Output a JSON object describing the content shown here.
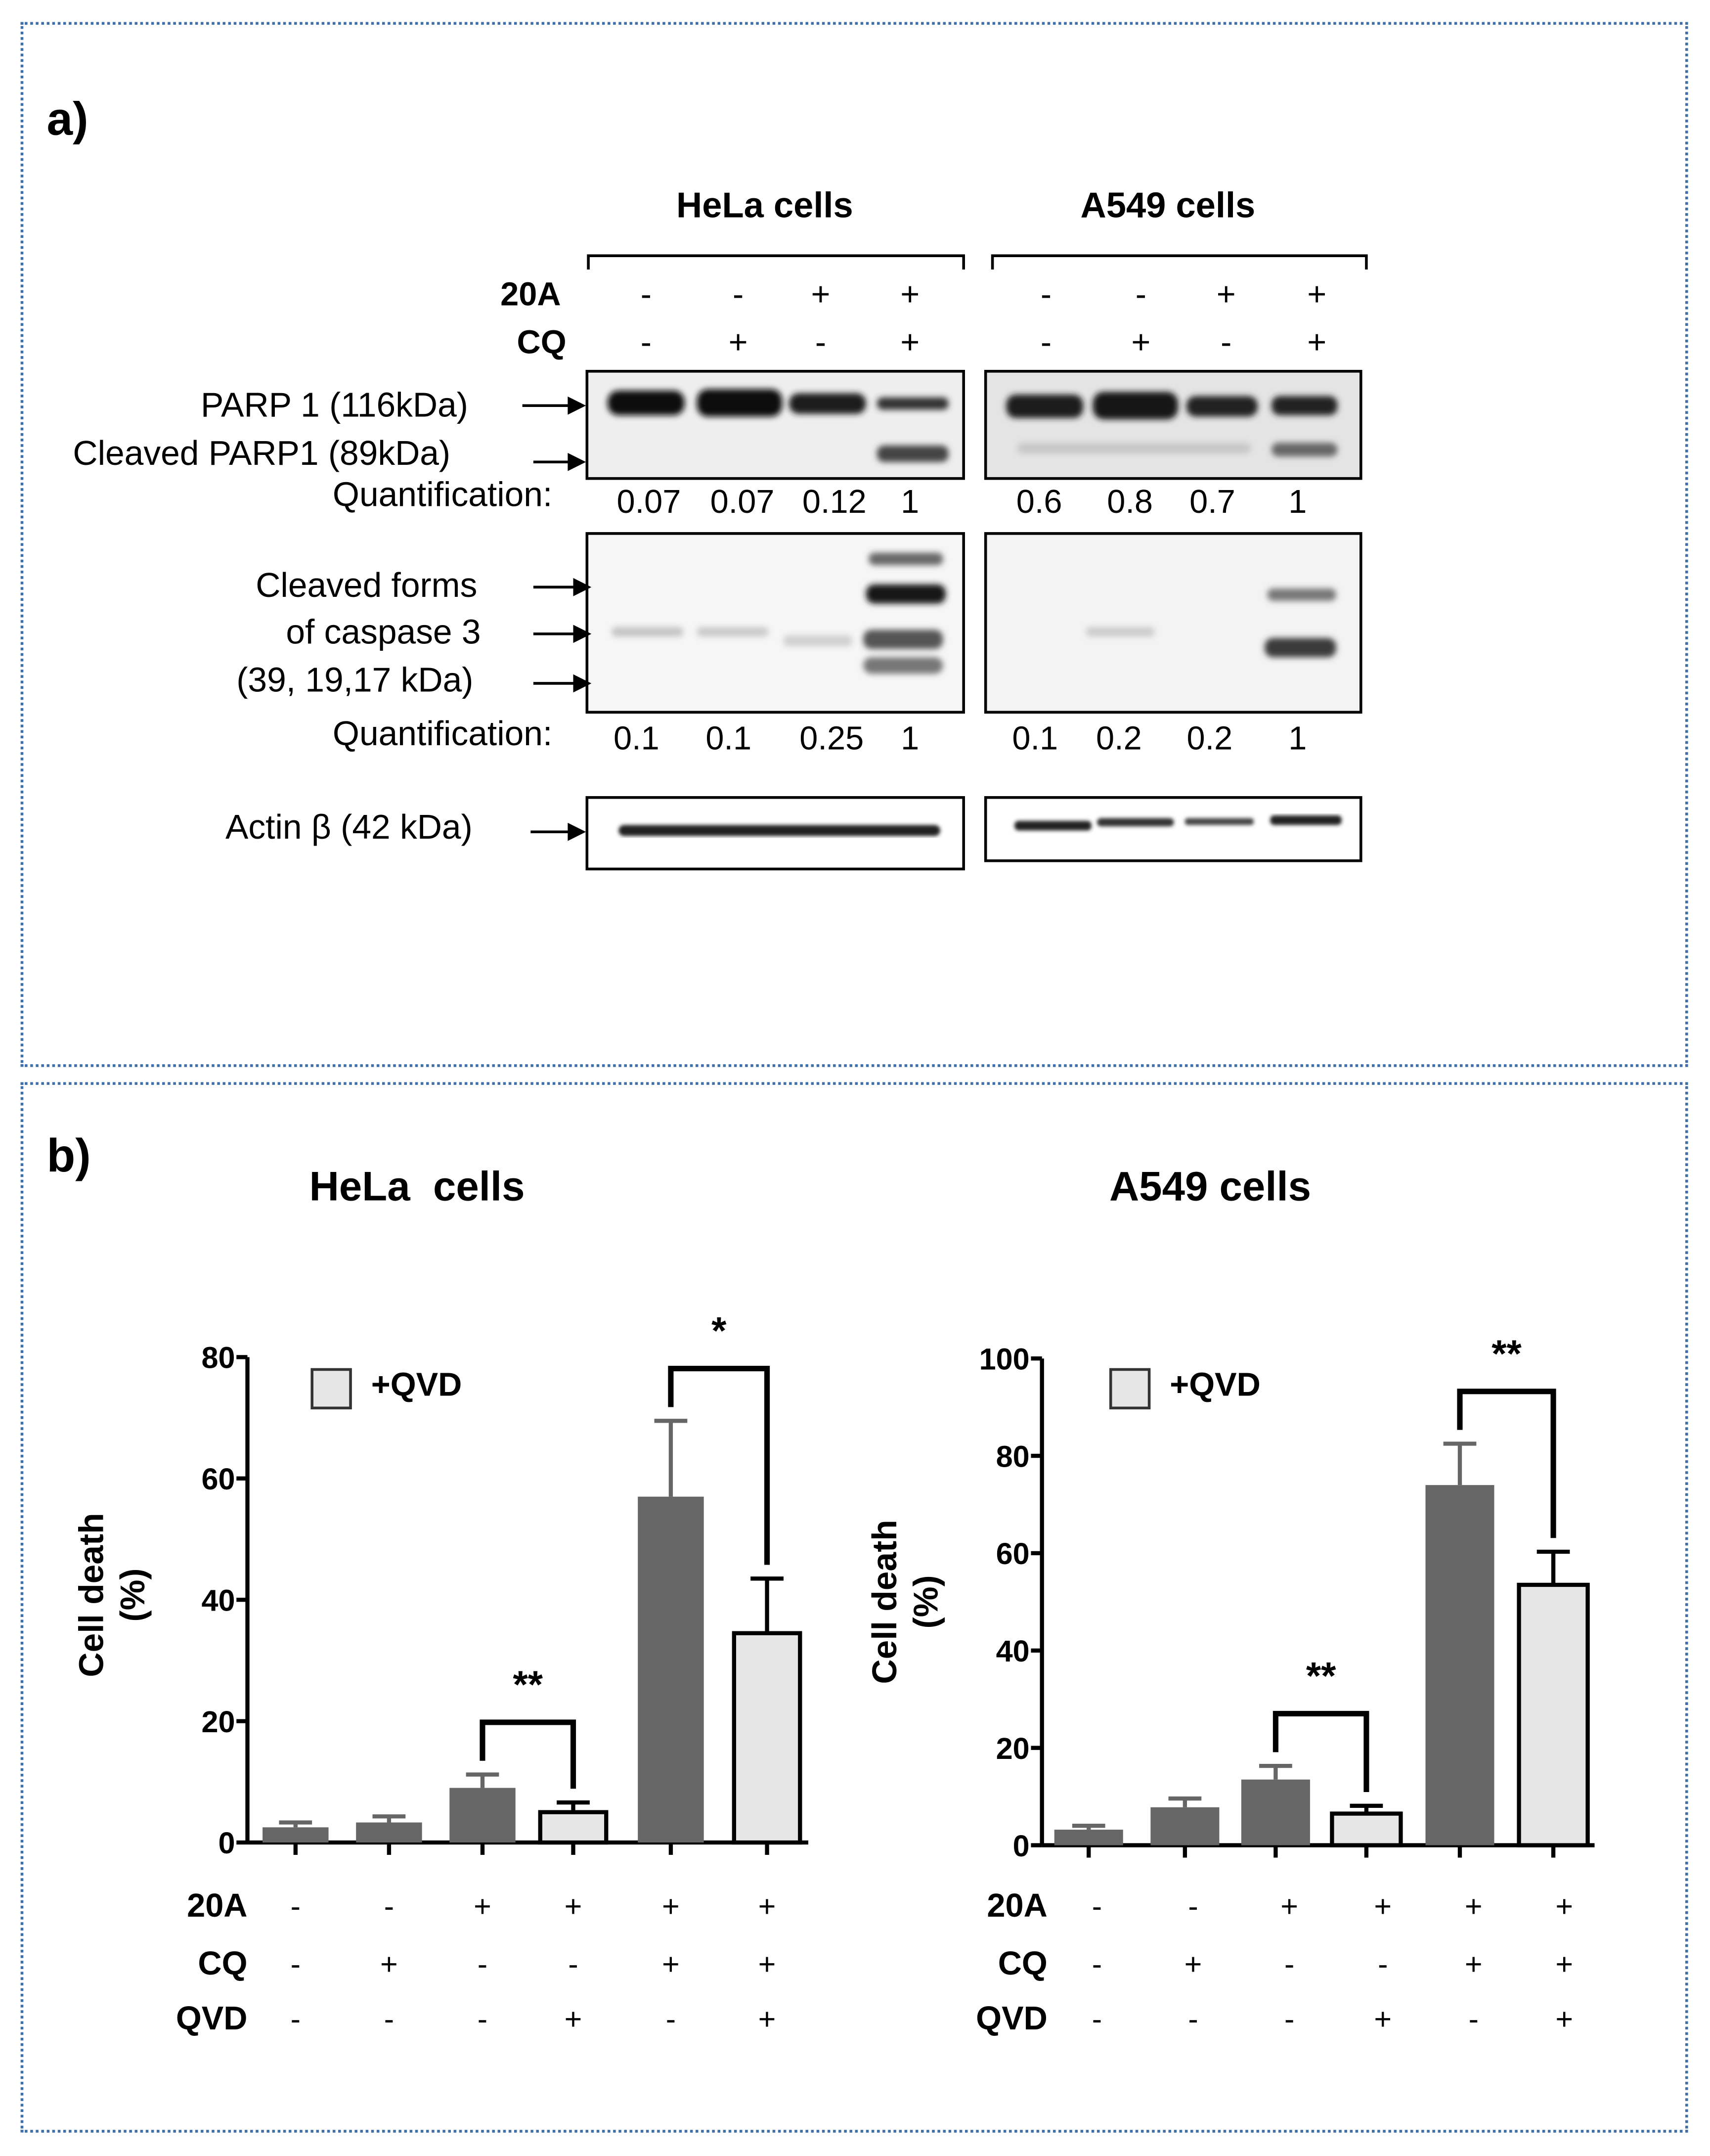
{
  "panel_a": {
    "label": "a)",
    "groups": [
      {
        "name": "HeLa cells",
        "cq_label": "CQ"
      },
      {
        "name": "A549 cells"
      }
    ],
    "row_labels": {
      "r1": "20A",
      "r2": "CQ"
    },
    "treatments": {
      "r1": [
        "-",
        "-",
        "+",
        "+"
      ],
      "r2": [
        "-",
        "+",
        "-",
        "+"
      ]
    },
    "blots": {
      "parp1": "PARP 1 (116kDa)",
      "cleaved_parp1": "Cleaved PARP1 (89kDa)",
      "casp1": "Cleaved forms",
      "casp2": "of caspase 3",
      "casp3": "(39, 19,17 kDa)",
      "actin": "Actin β (42 kDa)"
    },
    "quant_label": "Quantification:",
    "quant": {
      "parp_hela": [
        "0.07",
        "0.07",
        "0.12",
        "1"
      ],
      "parp_a549": [
        "0.6",
        "0.8",
        "0.7",
        "1"
      ],
      "casp_hela": [
        "0.1",
        "0.1",
        "0.25",
        "1"
      ],
      "casp_a549": [
        "0.1",
        "0.2",
        "0.2",
        "1"
      ]
    }
  },
  "panel_b": {
    "label": "b)",
    "row_labels": [
      "20A",
      "CQ",
      "QVD"
    ],
    "treatments": {
      "20A": [
        "-",
        "-",
        "+",
        "+",
        "+",
        "+"
      ],
      "CQ": [
        "-",
        "+",
        "-",
        "-",
        "+",
        "+"
      ],
      "QVD": [
        "-",
        "-",
        "-",
        "+",
        "-",
        "+"
      ]
    },
    "legend": "+QVD",
    "ylabel_line1": "Cell death",
    "ylabel_line2": "(%)"
  },
  "chart_data": [
    {
      "type": "bar",
      "title": "HeLa  cells",
      "ylabel": "Cell death (%)",
      "ylim": [
        0,
        80
      ],
      "yticks": [
        "0",
        "20",
        "40",
        "60",
        "80"
      ],
      "legend": "+QVD",
      "values": [
        2.5,
        3.3,
        9.0,
        5.0,
        57.0,
        34.5
      ],
      "errors": [
        0.8,
        1.0,
        2.2,
        1.6,
        12.5,
        9.0
      ],
      "qvd": [
        false,
        false,
        false,
        true,
        false,
        true
      ],
      "colors": {
        "no_qvd": "#666666",
        "qvd": "#e6e6e6"
      },
      "significance": [
        {
          "pair": [
            2,
            3
          ],
          "label": "**"
        },
        {
          "pair": [
            4,
            5
          ],
          "label": "*"
        }
      ]
    },
    {
      "type": "bar",
      "title": "A549 cells",
      "ylabel": "Cell death (%)",
      "ylim": [
        0,
        100
      ],
      "yticks": [
        "0",
        "20",
        "40",
        "60",
        "80",
        "100"
      ],
      "legend": "+QVD",
      "values": [
        3.2,
        7.8,
        13.5,
        6.5,
        74.0,
        53.5
      ],
      "errors": [
        0.8,
        1.8,
        2.8,
        1.6,
        8.5,
        6.8
      ],
      "qvd": [
        false,
        false,
        false,
        true,
        false,
        true
      ],
      "colors": {
        "no_qvd": "#666666",
        "qvd": "#e6e6e6"
      },
      "significance": [
        {
          "pair": [
            2,
            3
          ],
          "label": "**"
        },
        {
          "pair": [
            4,
            5
          ],
          "label": "**"
        }
      ]
    }
  ]
}
